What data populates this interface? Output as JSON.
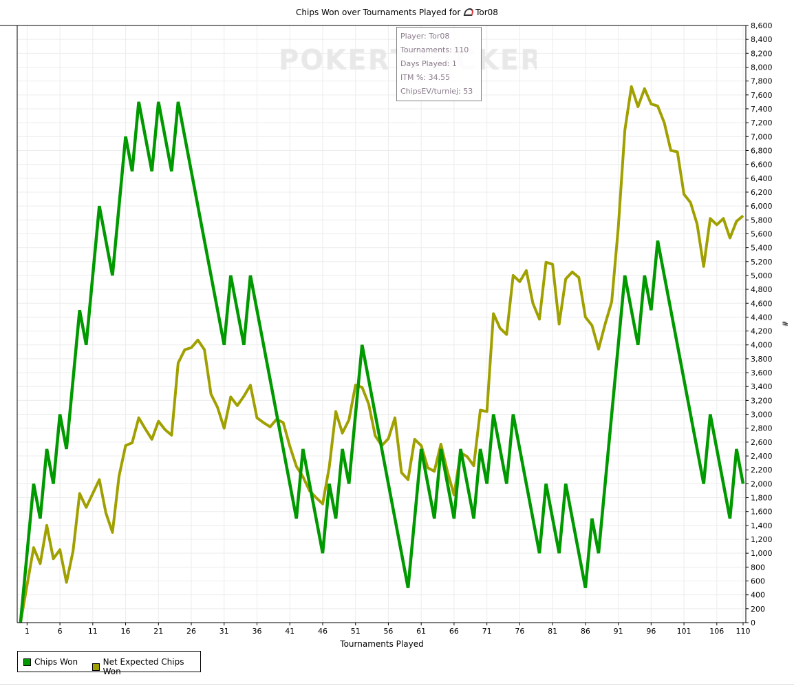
{
  "chart_data": {
    "type": "line",
    "title": "Chips Won over Tournaments Played for",
    "player": "Tor08",
    "xlabel": "Tournaments Played",
    "ylabel": "#",
    "xlim": [
      0,
      110
    ],
    "ylim": [
      0,
      8600
    ],
    "x_ticks": [
      1,
      6,
      11,
      16,
      21,
      26,
      31,
      36,
      41,
      46,
      51,
      56,
      61,
      66,
      71,
      76,
      81,
      86,
      91,
      96,
      101,
      106,
      110
    ],
    "y_ticks": [
      0,
      200,
      400,
      600,
      800,
      1000,
      1200,
      1400,
      1600,
      1800,
      2000,
      2200,
      2400,
      2600,
      2800,
      3000,
      3200,
      3400,
      3600,
      3800,
      4000,
      4200,
      4400,
      4600,
      4800,
      5000,
      5200,
      5400,
      5600,
      5800,
      6000,
      6200,
      6400,
      6600,
      6800,
      7000,
      7200,
      7400,
      7600,
      7800,
      8000,
      8200,
      8400,
      8600
    ],
    "grid": true,
    "legend_position": "bottom-left",
    "series": [
      {
        "name": "Chips Won",
        "color": "#009900",
        "vertices": [
          [
            0,
            0
          ],
          [
            2,
            2000
          ],
          [
            3,
            1500
          ],
          [
            4,
            2500
          ],
          [
            5,
            2000
          ],
          [
            6,
            3000
          ],
          [
            7,
            2500
          ],
          [
            9,
            4500
          ],
          [
            10,
            4000
          ],
          [
            12,
            6000
          ],
          [
            14,
            5000
          ],
          [
            16,
            7000
          ],
          [
            17,
            6500
          ],
          [
            18,
            7500
          ],
          [
            20,
            6500
          ],
          [
            21,
            7500
          ],
          [
            23,
            6500
          ],
          [
            24,
            7500
          ],
          [
            31,
            4000
          ],
          [
            32,
            5000
          ],
          [
            34,
            4000
          ],
          [
            35,
            5000
          ],
          [
            42,
            1500
          ],
          [
            43,
            2500
          ],
          [
            46,
            1000
          ],
          [
            47,
            2000
          ],
          [
            48,
            1500
          ],
          [
            49,
            2500
          ],
          [
            50,
            2000
          ],
          [
            52,
            4000
          ],
          [
            59,
            500
          ],
          [
            61,
            2500
          ],
          [
            63,
            1500
          ],
          [
            64,
            2500
          ],
          [
            66,
            1500
          ],
          [
            67,
            2500
          ],
          [
            69,
            1500
          ],
          [
            70,
            2500
          ],
          [
            71,
            2000
          ],
          [
            72,
            3000
          ],
          [
            74,
            2000
          ],
          [
            75,
            3000
          ],
          [
            79,
            1000
          ],
          [
            80,
            2000
          ],
          [
            82,
            1000
          ],
          [
            83,
            2000
          ],
          [
            86,
            500
          ],
          [
            87,
            1500
          ],
          [
            88,
            1000
          ],
          [
            92,
            5000
          ],
          [
            94,
            4000
          ],
          [
            95,
            5000
          ],
          [
            96,
            4500
          ],
          [
            97,
            5500
          ],
          [
            104,
            2000
          ],
          [
            105,
            3000
          ],
          [
            108,
            1500
          ],
          [
            109,
            2500
          ],
          [
            110,
            2000
          ]
        ]
      },
      {
        "name": "Net Expected Chips Won",
        "color": "#a0a000",
        "values": [
          0,
          540,
          1080,
          850,
          1400,
          920,
          1050,
          580,
          1030,
          1860,
          1660,
          1860,
          2060,
          1580,
          1300,
          2110,
          2550,
          2590,
          2950,
          2790,
          2640,
          2900,
          2780,
          2700,
          3740,
          3930,
          3960,
          4070,
          3930,
          3290,
          3100,
          2800,
          3250,
          3125,
          3260,
          3420,
          2950,
          2880,
          2820,
          2930,
          2880,
          2540,
          2250,
          2100,
          1900,
          1800,
          1710,
          2240,
          3040,
          2730,
          2920,
          3420,
          3390,
          3150,
          2690,
          2550,
          2650,
          2950,
          2160,
          2060,
          2640,
          2550,
          2230,
          2180,
          2570,
          2170,
          1840,
          2450,
          2390,
          2260,
          3060,
          3040,
          4450,
          4240,
          4150,
          5000,
          4910,
          5070,
          4600,
          4370,
          5190,
          5160,
          4300,
          4950,
          5050,
          4970,
          4400,
          4280,
          3940,
          4300,
          4620,
          5690,
          7090,
          7720,
          7430,
          7690,
          7470,
          7440,
          7200,
          6800,
          6780,
          6170,
          6050,
          5740,
          5130,
          5820,
          5730,
          5820,
          5540,
          5780,
          5860
        ]
      }
    ],
    "info_box": [
      "Player: Tor08",
      "Tournaments: 110",
      "Days Played: 1",
      "ITM %: 34.55",
      "ChipsEV/turniej: 53"
    ],
    "watermark": "POKERTRACKER"
  },
  "colors": {
    "grid": "#ececec",
    "axis": "#000000",
    "watermark": "#e6e6e6"
  }
}
